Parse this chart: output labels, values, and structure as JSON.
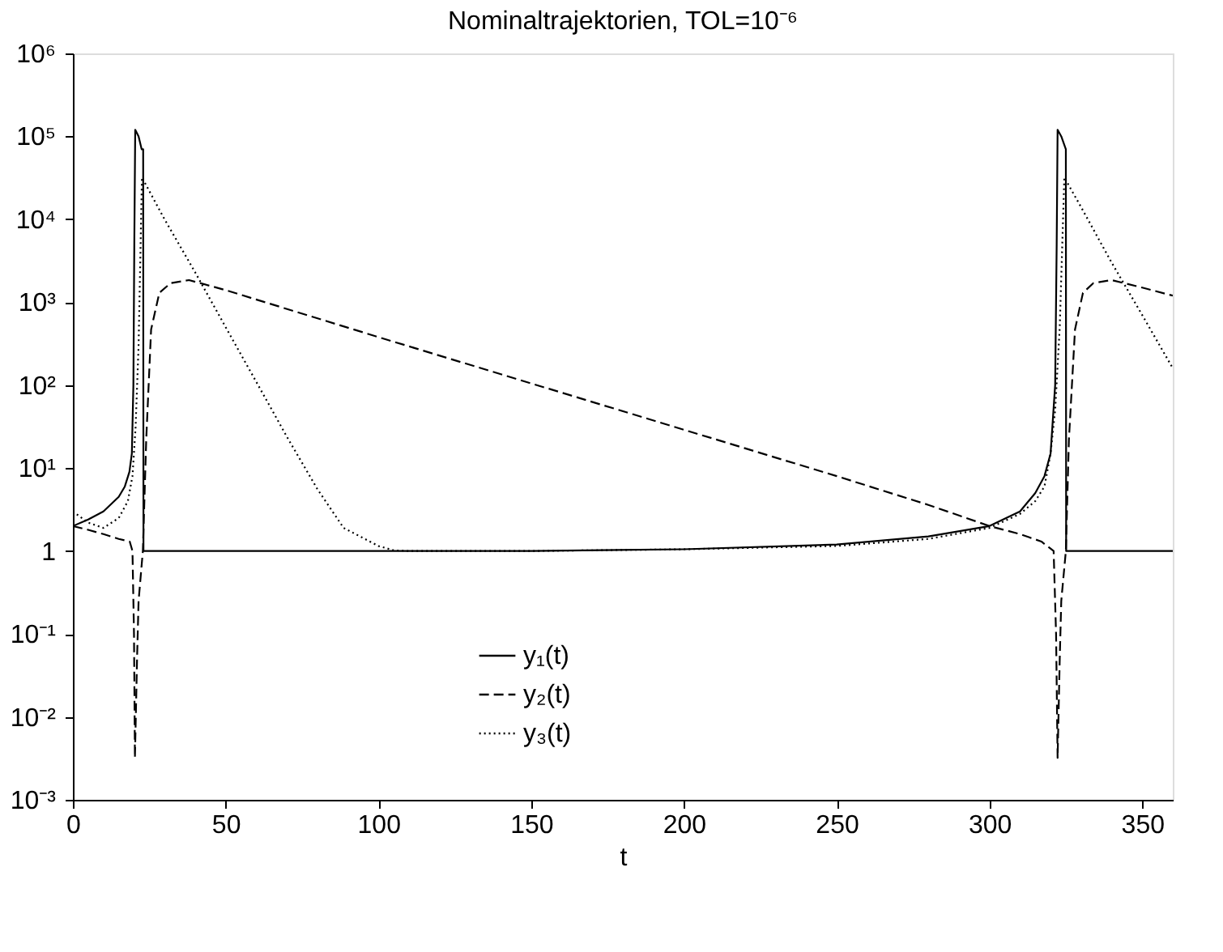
{
  "chart_data": {
    "type": "line",
    "title": "Nominaltrajektorien, TOL=10⁻⁶",
    "xlabel": "t",
    "xlim": [
      0,
      360
    ],
    "xticks": [
      0,
      50,
      100,
      150,
      200,
      250,
      300,
      350
    ],
    "ylim": [
      0.001,
      1000000
    ],
    "log": true,
    "yticks": [
      {
        "value": 0.001,
        "label": "10⁻³"
      },
      {
        "value": 0.01,
        "label": "10⁻²"
      },
      {
        "value": 0.1,
        "label": "10⁻¹"
      },
      1,
      {
        "value": 10,
        "label": "10¹"
      },
      {
        "value": 100,
        "label": "10²"
      },
      {
        "value": 1000,
        "label": "10³"
      },
      {
        "value": 10000,
        "label": "10⁴"
      },
      {
        "value": 100000,
        "label": "10⁵"
      },
      {
        "value": 1000000,
        "label": "10⁶"
      }
    ],
    "grid": false,
    "legend": "bottom",
    "marker": "none",
    "series": [
      {
        "name": "y₁(t)",
        "color": "#000000",
        "line_style": "solid",
        "x": [
          0,
          5,
          10,
          15,
          17,
          18.5,
          19.3,
          19.8,
          20.1,
          20.4,
          21.5,
          22.5,
          23,
          23.1,
          150,
          200,
          250,
          280,
          300,
          310,
          315,
          318,
          320,
          321.5,
          322,
          322.3,
          323.5,
          325,
          325.1,
          360
        ],
        "values": [
          2,
          2.4,
          3,
          4.5,
          6,
          9,
          15,
          100,
          5000,
          120000,
          100000,
          70000,
          70000,
          1,
          1,
          1.05,
          1.2,
          1.5,
          2,
          3,
          5,
          8,
          15,
          100,
          5000,
          120000,
          100000,
          70000,
          1,
          1
        ]
      },
      {
        "name": "y₂(t)",
        "color": "#000000",
        "line_style": "dashed",
        "x": [
          0,
          5,
          10,
          15,
          18.6,
          19.5,
          20,
          20.3,
          21,
          21.5,
          22.9,
          24,
          25.6,
          28.3,
          32,
          38,
          50,
          100,
          150,
          200,
          250,
          280,
          300,
          310,
          317,
          321,
          321.8,
          322.3,
          323,
          323.5,
          325,
          326,
          328,
          330.6,
          334,
          340,
          350,
          360
        ],
        "values": [
          2,
          1.8,
          1.6,
          1.4,
          1.3,
          1,
          0.1,
          0.0032,
          0.05,
          0.25,
          1,
          22,
          470,
          1300,
          1700,
          1850,
          1400,
          380,
          105,
          29,
          8,
          3.6,
          2,
          1.6,
          1.3,
          1,
          0.1,
          0.0032,
          0.05,
          0.25,
          1,
          22,
          470,
          1300,
          1700,
          1850,
          1500,
          1200
        ]
      },
      {
        "name": "y₃(t)",
        "color": "#000000",
        "line_style": "dotted",
        "x": [
          0,
          5,
          10,
          15,
          18,
          19.5,
          20.5,
          21.5,
          22.6,
          30,
          40,
          50,
          60,
          70,
          80,
          88.6,
          94,
          100,
          105,
          110,
          150,
          200,
          250,
          280,
          300,
          310,
          315,
          318,
          320,
          321.5,
          323,
          324.5,
          330,
          340,
          350,
          360
        ],
        "values": [
          3,
          2.2,
          1.9,
          2.5,
          4,
          8,
          30,
          300,
          32000,
          10000,
          2300,
          500,
          110,
          24,
          5.6,
          1.9,
          1.5,
          1.15,
          1.02,
          1,
          1,
          1.05,
          1.15,
          1.4,
          1.9,
          2.8,
          4,
          6,
          15,
          50,
          500,
          32000,
          14000,
          3000,
          700,
          160
        ]
      }
    ]
  }
}
